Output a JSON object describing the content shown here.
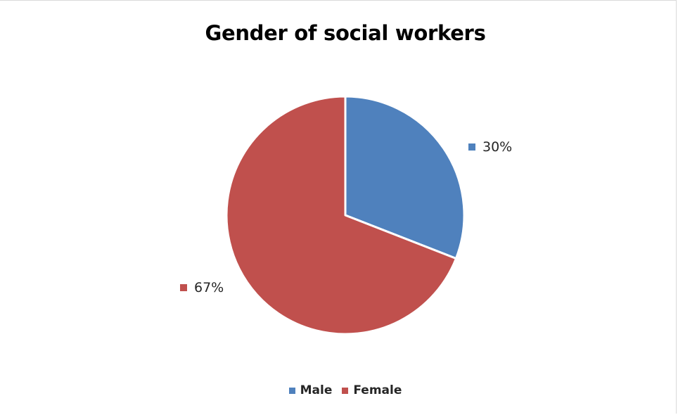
{
  "chart_data": {
    "type": "pie",
    "title": "Gender of social workers",
    "categories": [
      "Male",
      "Female"
    ],
    "values": [
      30,
      67
    ],
    "data_labels": [
      "30%",
      "67%"
    ],
    "colors": [
      "#4F81BD",
      "#C0504D"
    ],
    "legend_position": "bottom",
    "start_angle_deg": 0,
    "direction": "clockwise"
  }
}
